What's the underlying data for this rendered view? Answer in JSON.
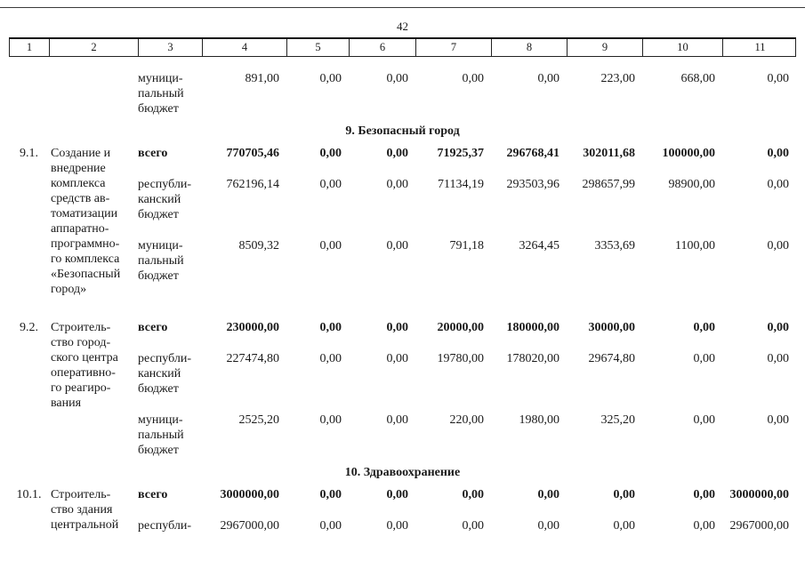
{
  "page_number": "42",
  "header": [
    "1",
    "2",
    "3",
    "4",
    "5",
    "6",
    "7",
    "8",
    "9",
    "10",
    "11"
  ],
  "row_cont": {
    "budget": "муници-\nпальный\nбюджет",
    "v": [
      "891,00",
      "0,00",
      "0,00",
      "0,00",
      "0,00",
      "223,00",
      "668,00",
      "0,00"
    ]
  },
  "section9": {
    "title": "9. Безопасный город",
    "item91": {
      "num": "9.1.",
      "name": "Создание и\nвнедрение\nкомплекса\nсредств ав-\nтоматизации\nаппаратно-\nпрограммно-\nго комплекса\n«Безопасный\nгород»",
      "total_label": "всего",
      "total": [
        "770705,46",
        "0,00",
        "0,00",
        "71925,37",
        "296768,41",
        "302011,68",
        "100000,00",
        "0,00"
      ],
      "rep_label": "республи-\nканский\nбюджет",
      "rep": [
        "762196,14",
        "0,00",
        "0,00",
        "71134,19",
        "293503,96",
        "298657,99",
        "98900,00",
        "0,00"
      ],
      "mun_label": "муници-\nпальный\nбюджет",
      "mun": [
        "8509,32",
        "0,00",
        "0,00",
        "791,18",
        "3264,45",
        "3353,69",
        "1100,00",
        "0,00"
      ]
    },
    "item92": {
      "num": "9.2.",
      "name": "Строитель-\nство город-\nского центра\nоперативно-\nго реагиро-\nвания",
      "total_label": "всего",
      "total": [
        "230000,00",
        "0,00",
        "0,00",
        "20000,00",
        "180000,00",
        "30000,00",
        "0,00",
        "0,00"
      ],
      "rep_label": "республи-\nканский\nбюджет",
      "rep": [
        "227474,80",
        "0,00",
        "0,00",
        "19780,00",
        "178020,00",
        "29674,80",
        "0,00",
        "0,00"
      ],
      "mun_label": "муници-\nпальный\nбюджет",
      "mun": [
        "2525,20",
        "0,00",
        "0,00",
        "220,00",
        "1980,00",
        "325,20",
        "0,00",
        "0,00"
      ]
    }
  },
  "section10": {
    "title": "10. Здравоохранение",
    "item101": {
      "num": "10.1.",
      "name": "Строитель-\nство здания\nцентральной",
      "total_label": "всего",
      "total": [
        "3000000,00",
        "0,00",
        "0,00",
        "0,00",
        "0,00",
        "0,00",
        "0,00",
        "3000000,00"
      ],
      "rep_label": "республи-",
      "rep": [
        "2967000,00",
        "0,00",
        "0,00",
        "0,00",
        "0,00",
        "0,00",
        "0,00",
        "2967000,00"
      ]
    }
  }
}
